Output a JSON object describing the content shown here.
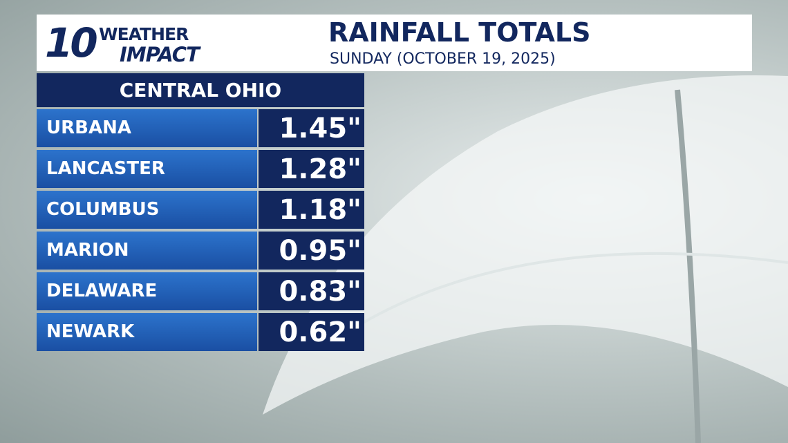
{
  "header": {
    "logo_number": "10",
    "logo_line1": "WEATHER",
    "logo_line2": "IMPACT",
    "title": "RAINFALL TOTALS",
    "subtitle": "SUNDAY (OCTOBER 19, 2025)"
  },
  "table": {
    "header": "CENTRAL OHIO",
    "rows": [
      [
        "URBANA",
        "1.45\""
      ],
      [
        "LANCASTER",
        "1.28\""
      ],
      [
        "COLUMBUS",
        "1.18\""
      ],
      [
        "MARION",
        "0.95\""
      ],
      [
        "DELAWARE",
        "0.83\""
      ],
      [
        "NEWARK",
        "0.62\""
      ]
    ]
  }
}
